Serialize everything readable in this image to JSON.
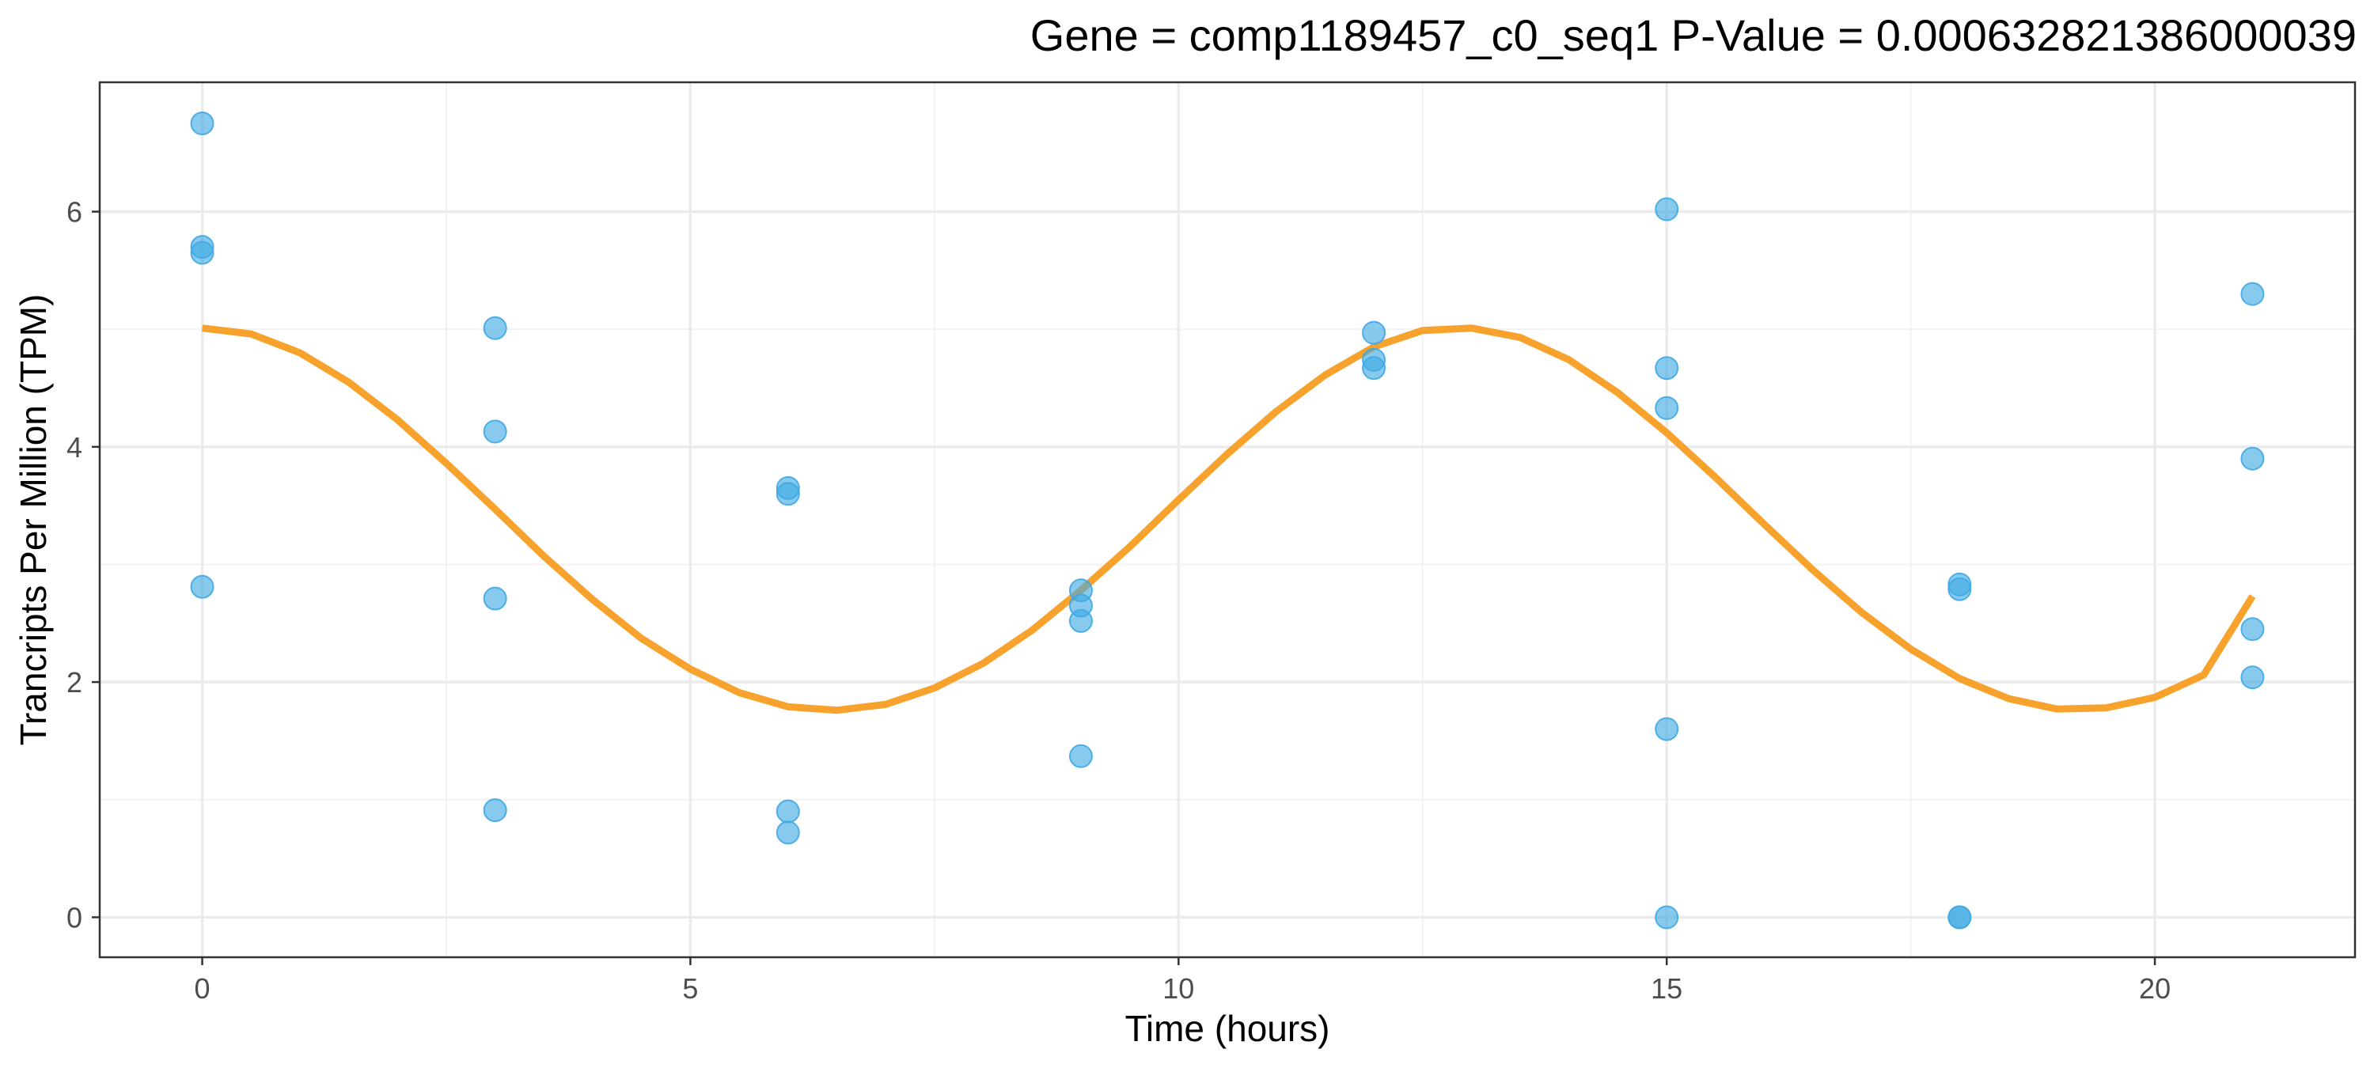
{
  "chart_data": {
    "type": "scatter",
    "title": "Gene =  comp1189457_c0_seq1  P-Value =  0.000632821386000039",
    "xlabel": "Time (hours)",
    "ylabel": "Trancripts Per Million (TPM)",
    "xlim": [
      -1.05,
      22.05
    ],
    "ylim": [
      -0.34,
      7.1
    ],
    "x_ticks": [
      0,
      5,
      10,
      15,
      20
    ],
    "y_ticks": [
      0,
      2,
      4,
      6
    ],
    "x_tick_labels": [
      "0",
      "5",
      "10",
      "15",
      "20"
    ],
    "y_tick_labels": [
      "0",
      "2",
      "4",
      "6"
    ],
    "grid": true,
    "points_color": "#3fa9e3",
    "curve_color": "#f7a22c",
    "series": [
      {
        "type": "scatter",
        "x": [
          0,
          0,
          0,
          0,
          3,
          3,
          3,
          3,
          6,
          6,
          6,
          6,
          9,
          9,
          9,
          9,
          12,
          12,
          12,
          15,
          15,
          15,
          15,
          15,
          18,
          18,
          18,
          18,
          21,
          21,
          21,
          21
        ],
        "y": [
          6.75,
          5.7,
          5.65,
          2.81,
          5.01,
          4.13,
          2.71,
          0.91,
          3.65,
          3.6,
          0.9,
          0.72,
          2.78,
          2.65,
          2.52,
          1.37,
          4.97,
          4.74,
          4.67,
          6.02,
          4.67,
          4.33,
          1.6,
          0.0,
          2.83,
          2.79,
          0.0,
          0.0,
          5.3,
          3.9,
          2.45,
          2.04
        ]
      },
      {
        "type": "line",
        "x": [
          0,
          0.5,
          1,
          1.5,
          2,
          2.5,
          3,
          3.5,
          4,
          4.5,
          5,
          5.5,
          6,
          6.5,
          7,
          7.5,
          8,
          8.5,
          9,
          9.5,
          10,
          10.5,
          11,
          11.5,
          12,
          12.5,
          13,
          13.5,
          14,
          14.5,
          15,
          15.5,
          16,
          16.5,
          17,
          17.5,
          18,
          18.5,
          19,
          19.5,
          20,
          20.5,
          21
        ],
        "y": [
          5.01,
          4.96,
          4.8,
          4.55,
          4.23,
          3.86,
          3.47,
          3.07,
          2.7,
          2.37,
          2.11,
          1.91,
          1.79,
          1.76,
          1.81,
          1.95,
          2.16,
          2.44,
          2.78,
          3.15,
          3.55,
          3.94,
          4.3,
          4.61,
          4.85,
          4.99,
          5.01,
          4.93,
          4.74,
          4.46,
          4.12,
          3.74,
          3.34,
          2.95,
          2.59,
          2.28,
          2.03,
          1.86,
          1.77,
          1.78,
          1.87,
          2.06,
          2.73
        ]
      }
    ]
  }
}
